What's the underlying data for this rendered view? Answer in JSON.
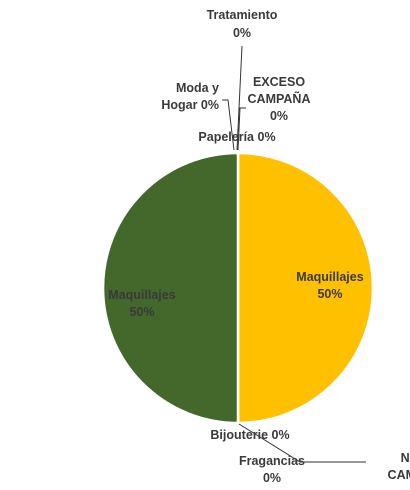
{
  "chart_data": {
    "type": "pie",
    "title": "",
    "slices": [
      {
        "label": "Maquillajes",
        "label_lines": [
          "Maquillajes",
          "50%"
        ],
        "value": 50,
        "color": "#FFC000"
      },
      {
        "label": "NO CAMPAÑA",
        "label_lines": [
          "NO",
          "CAMPA"
        ],
        "value": 0,
        "color": "#2F5597"
      },
      {
        "label": "Fragancias",
        "label_lines": [
          "Fragancias",
          "0%"
        ],
        "value": 0,
        "color": "#70AD47"
      },
      {
        "label": "Bijouterie",
        "label_lines": [
          "Bijouterie 0%"
        ],
        "value": 0,
        "color": "#264478"
      },
      {
        "label": "Maquillajes",
        "label_lines": [
          "Maquillajes",
          "50%"
        ],
        "value": 50,
        "color": "#43682B"
      },
      {
        "label": "Papelería",
        "label_lines": [
          "Papelería 0%"
        ],
        "value": 0,
        "color": "#9E480E"
      },
      {
        "label": "Moda y Hogar",
        "label_lines": [
          "Moda y",
          "Hogar 0%"
        ],
        "value": 0,
        "color": "#636363"
      },
      {
        "label": "Tratamiento",
        "label_lines": [
          "Tratamiento",
          "0%"
        ],
        "value": 0,
        "color": "#997300"
      },
      {
        "label": "EXCESO CAMPAÑA",
        "label_lines": [
          "EXCESO",
          "CAMPAÑA",
          "0%"
        ],
        "value": 0,
        "color": "#5B9BD5"
      }
    ]
  }
}
